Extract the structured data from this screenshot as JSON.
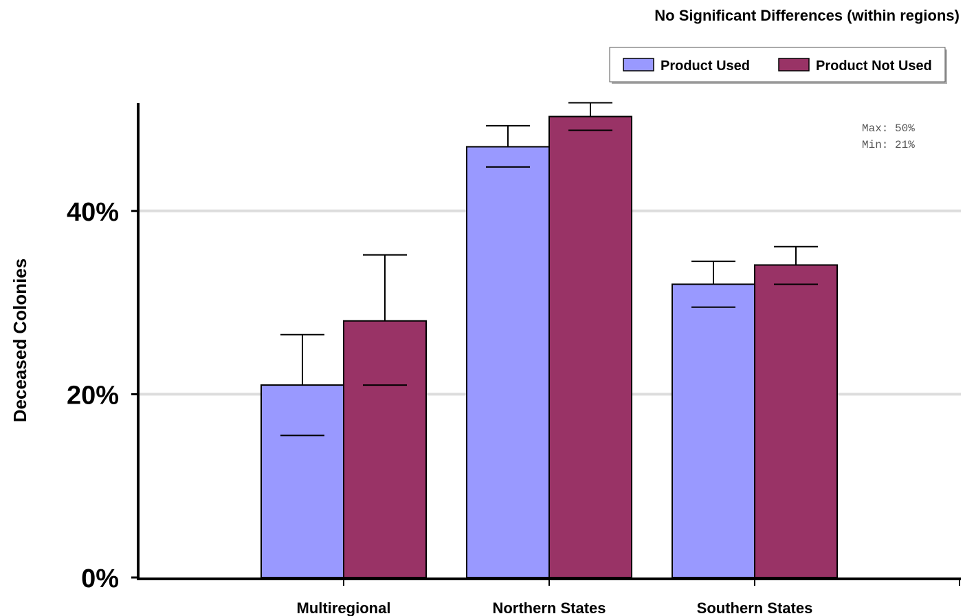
{
  "chart_data": {
    "type": "bar",
    "title": "No Significant Differences (within regions)",
    "xlabel": "",
    "ylabel": "Deceased Colonies",
    "ylim": [
      0,
      50
    ],
    "yticks": [
      0,
      20,
      40
    ],
    "ytick_labels": [
      "0%",
      "20%",
      "40%"
    ],
    "grid": true,
    "legend_position": "top-right",
    "categories": [
      "Multiregional",
      "Northern States",
      "Southern States"
    ],
    "series": [
      {
        "name": "Product Used",
        "color": "#9999ff",
        "values": [
          21,
          47,
          32
        ],
        "error_low": [
          15.5,
          44.8,
          29.5
        ],
        "error_high": [
          26.5,
          49.3,
          34.5
        ]
      },
      {
        "name": "Product Not Used",
        "color": "#993366",
        "values": [
          28,
          50.3,
          34.1
        ],
        "error_low": [
          21,
          48.8,
          32
        ],
        "error_high": [
          35.2,
          51.8,
          36.1
        ]
      }
    ],
    "annotations": {
      "max_label": "Max: 50%",
      "min_label": "Min: 21%"
    }
  }
}
